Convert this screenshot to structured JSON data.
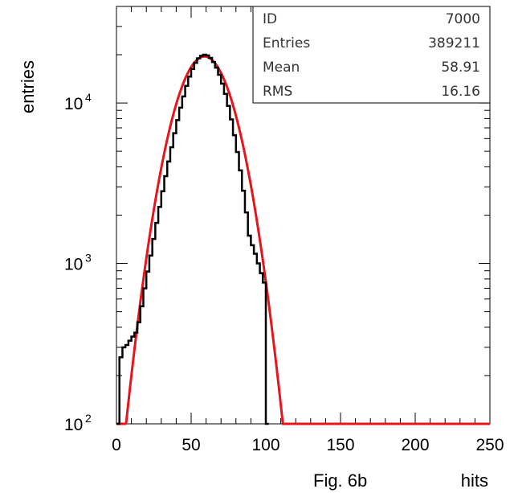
{
  "chart_data": {
    "type": "histogram",
    "title": "",
    "xlabel": "hits",
    "ylabel": "entries",
    "caption": "Fig. 6b",
    "xlim": [
      0,
      250
    ],
    "ylim": [
      100,
      40000
    ],
    "yscale": "log",
    "grid": false,
    "x_ticks": [
      {
        "value": 0,
        "label": "0"
      },
      {
        "value": 50,
        "label": "50"
      },
      {
        "value": 100,
        "label": "100"
      },
      {
        "value": 150,
        "label": "150"
      },
      {
        "value": 200,
        "label": "200"
      },
      {
        "value": 250,
        "label": "250"
      }
    ],
    "y_ticks": [
      {
        "value": 100,
        "base": "10",
        "exp": "2"
      },
      {
        "value": 1000,
        "base": "10",
        "exp": "3"
      },
      {
        "value": 10000,
        "base": "10",
        "exp": "4"
      }
    ],
    "stats_box": {
      "placement": "top-right",
      "rows": [
        {
          "label": "ID",
          "value": "7000"
        },
        {
          "label": "Entries",
          "value": "389211"
        },
        {
          "label": "Mean",
          "value": "58.91"
        },
        {
          "label": "RMS",
          "value": "16.16"
        }
      ]
    },
    "series": [
      {
        "kind": "histogram",
        "color": "#000000",
        "bin_width": 2,
        "points": [
          [
            0,
            100
          ],
          [
            2,
            260
          ],
          [
            4,
            300
          ],
          [
            6,
            310
          ],
          [
            8,
            330
          ],
          [
            10,
            350
          ],
          [
            12,
            370
          ],
          [
            14,
            430
          ],
          [
            16,
            540
          ],
          [
            18,
            700
          ],
          [
            20,
            890
          ],
          [
            22,
            1120
          ],
          [
            24,
            1420
          ],
          [
            26,
            1790
          ],
          [
            28,
            2250
          ],
          [
            30,
            2820
          ],
          [
            32,
            3500
          ],
          [
            34,
            4320
          ],
          [
            36,
            5300
          ],
          [
            38,
            6480
          ],
          [
            40,
            7820
          ],
          [
            42,
            9350
          ],
          [
            44,
            11000
          ],
          [
            46,
            12800
          ],
          [
            48,
            14600
          ],
          [
            50,
            16300
          ],
          [
            52,
            17800
          ],
          [
            54,
            19000
          ],
          [
            56,
            19700
          ],
          [
            58,
            20000
          ],
          [
            60,
            19800
          ],
          [
            62,
            19100
          ],
          [
            64,
            18000
          ],
          [
            66,
            16600
          ],
          [
            68,
            15000
          ],
          [
            70,
            13200
          ],
          [
            72,
            11400
          ],
          [
            74,
            9600
          ],
          [
            76,
            7900
          ],
          [
            78,
            6300
          ],
          [
            80,
            4950
          ],
          [
            82,
            3800
          ],
          [
            84,
            2840
          ],
          [
            86,
            2080
          ],
          [
            88,
            1490
          ],
          [
            90,
            1300
          ],
          [
            92,
            1150
          ],
          [
            94,
            1000
          ],
          [
            96,
            870
          ],
          [
            98,
            760
          ],
          [
            100,
            100
          ]
        ]
      },
      {
        "kind": "fit",
        "color": "#e8141b",
        "mean": 58.91,
        "sigma": 16.16,
        "peak": 19500,
        "x_range": [
          0,
          250
        ]
      }
    ]
  }
}
